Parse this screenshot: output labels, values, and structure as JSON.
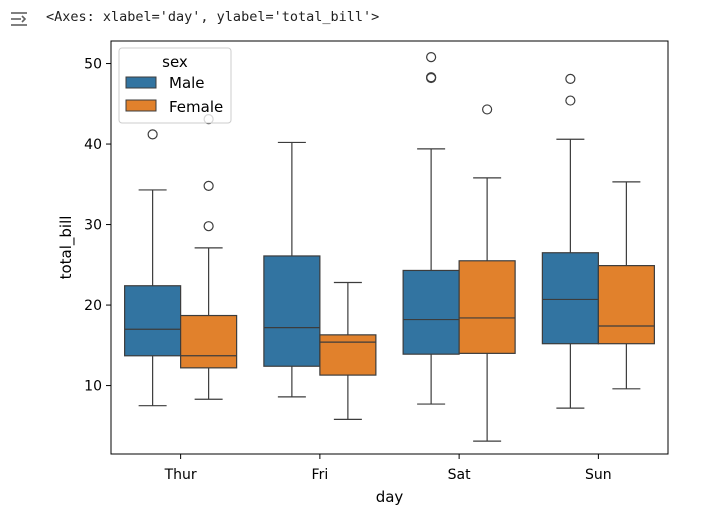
{
  "output": {
    "icon": "output-collapse-icon",
    "repr": "<Axes: xlabel='day', ylabel='total_bill'>"
  },
  "chart_data": {
    "type": "box",
    "xlabel": "day",
    "ylabel": "total_bill",
    "ylim": [
      1.5,
      52.8
    ],
    "yticks": [
      10,
      20,
      30,
      40,
      50
    ],
    "categories": [
      "Thur",
      "Fri",
      "Sat",
      "Sun"
    ],
    "hue_title": "sex",
    "legend_placement": "upper-left",
    "grid": false,
    "series": [
      {
        "name": "Male",
        "color": "#3274a1",
        "boxes": [
          {
            "whislo": 7.5,
            "q1": 13.7,
            "med": 17.0,
            "q3": 22.4,
            "whishi": 34.3,
            "fliers": [
              41.2
            ]
          },
          {
            "whislo": 8.6,
            "q1": 12.4,
            "med": 17.2,
            "q3": 26.1,
            "whishi": 40.2,
            "fliers": []
          },
          {
            "whislo": 7.7,
            "q1": 13.9,
            "med": 18.2,
            "q3": 24.3,
            "whishi": 39.4,
            "fliers": [
              48.2,
              48.3,
              50.8
            ]
          },
          {
            "whislo": 7.2,
            "q1": 15.2,
            "med": 20.7,
            "q3": 26.5,
            "whishi": 40.6,
            "fliers": [
              45.4,
              48.1
            ]
          }
        ]
      },
      {
        "name": "Female",
        "color": "#e1812c",
        "boxes": [
          {
            "whislo": 8.3,
            "q1": 12.2,
            "med": 13.7,
            "q3": 18.7,
            "whishi": 27.1,
            "fliers": [
              29.8,
              34.8,
              43.1
            ]
          },
          {
            "whislo": 5.8,
            "q1": 11.3,
            "med": 15.4,
            "q3": 16.3,
            "whishi": 22.8,
            "fliers": []
          },
          {
            "whislo": 3.1,
            "q1": 14.0,
            "med": 18.4,
            "q3": 25.5,
            "whishi": 35.8,
            "fliers": [
              44.3
            ]
          },
          {
            "whislo": 9.6,
            "q1": 15.2,
            "med": 17.4,
            "q3": 24.9,
            "whishi": 35.3,
            "fliers": []
          }
        ]
      }
    ]
  }
}
